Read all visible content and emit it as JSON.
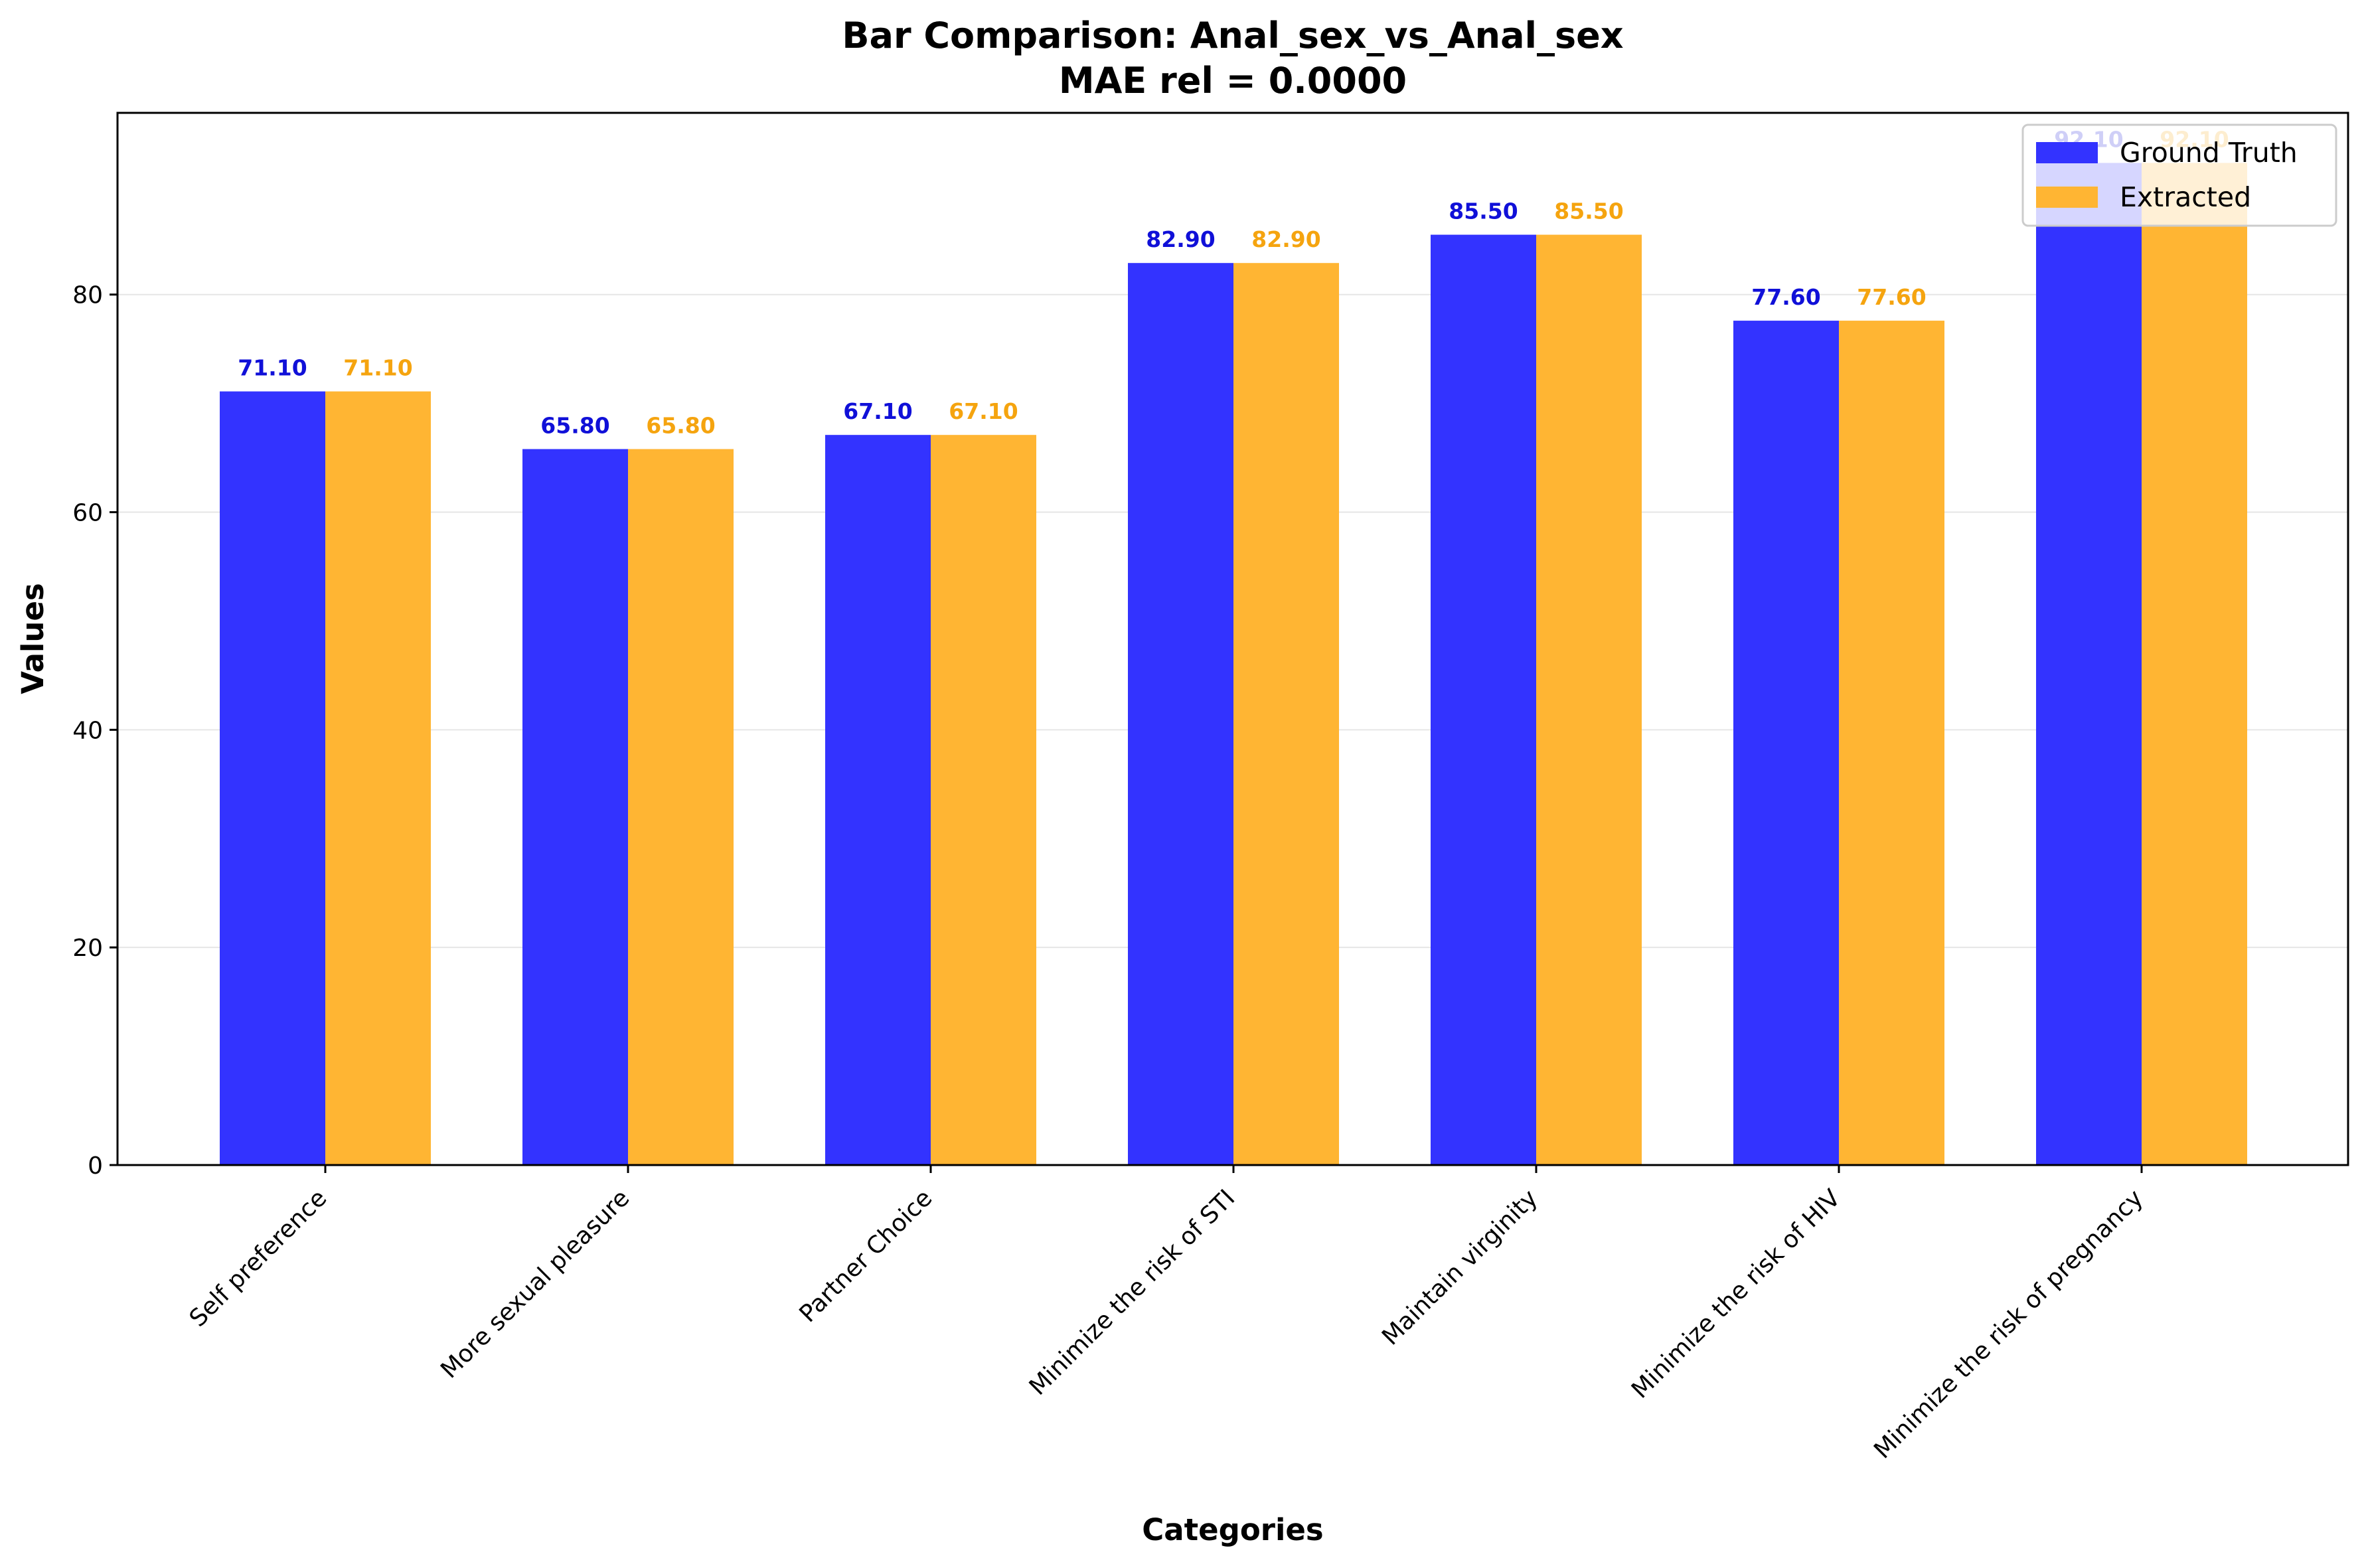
{
  "chart_data": {
    "type": "bar",
    "title": "Bar Comparison: Anal_sex_vs_Anal_sex",
    "subtitle": "MAE rel = 0.0000",
    "xlabel": "Categories",
    "ylabel": "Values",
    "ylim": [
      0,
      96.7
    ],
    "yticks": [
      0,
      20,
      40,
      60,
      80
    ],
    "grid": "y",
    "legend_position": "top-right",
    "categories": [
      "Self preference",
      "More sexual pleasure",
      "Partner Choice",
      "Minimize the risk of STI",
      "Maintain virginity",
      "Minimize the risk of HIV",
      "Minimize the risk of pregnancy"
    ],
    "series": [
      {
        "name": "Ground Truth",
        "color": "#3333ff",
        "label_color": "#1010d8",
        "values": [
          71.1,
          65.8,
          67.1,
          82.9,
          85.5,
          77.6,
          92.1
        ],
        "labels": [
          "71.10",
          "65.80",
          "67.10",
          "82.90",
          "85.50",
          "77.60",
          "92.10"
        ]
      },
      {
        "name": "Extracted",
        "color": "#ffb533",
        "label_color": "#f5a40f",
        "values": [
          71.1,
          65.8,
          67.1,
          82.9,
          85.5,
          77.6,
          92.1
        ],
        "labels": [
          "71.10",
          "65.80",
          "67.10",
          "82.90",
          "85.50",
          "77.60",
          "92.10"
        ]
      }
    ]
  }
}
